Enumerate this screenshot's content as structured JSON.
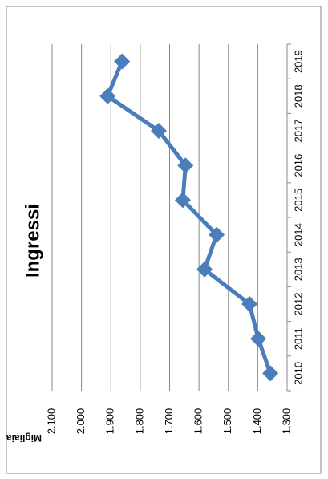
{
  "chart_data": {
    "type": "line",
    "title": "Ingressi",
    "y_label": "Migliaia",
    "categories": [
      "2010",
      "2011",
      "2012",
      "2013",
      "2014",
      "2015",
      "2016",
      "2017",
      "2018",
      "2019"
    ],
    "series": [
      {
        "name": "Ingressi",
        "color": "#4a7ebb",
        "values": [
          1357,
          1398,
          1428,
          1581,
          1540,
          1655,
          1646,
          1737,
          1911,
          1862
        ]
      }
    ],
    "ylim": [
      1300,
      2100
    ],
    "yticks": [
      {
        "value": 1300,
        "label": "1.300"
      },
      {
        "value": 1400,
        "label": "1.400"
      },
      {
        "value": 1500,
        "label": "1.500"
      },
      {
        "value": 1600,
        "label": "1.600"
      },
      {
        "value": 1700,
        "label": "1.700"
      },
      {
        "value": 1800,
        "label": "1.800"
      },
      {
        "value": 1900,
        "label": "1.900"
      },
      {
        "value": 2000,
        "label": "2.000"
      },
      {
        "value": 2100,
        "label": "2.100"
      }
    ],
    "grid": true
  }
}
